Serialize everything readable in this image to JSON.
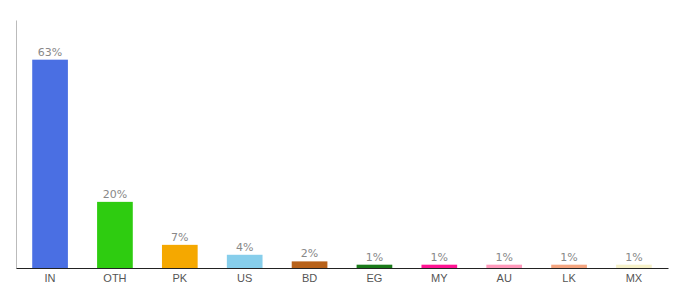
{
  "chart_data": {
    "type": "bar",
    "categories": [
      "IN",
      "OTH",
      "PK",
      "US",
      "BD",
      "EG",
      "MY",
      "AU",
      "LK",
      "MX"
    ],
    "values": [
      63,
      20,
      7,
      4,
      2,
      1,
      1,
      1,
      1,
      1
    ],
    "value_labels": [
      "63%",
      "20%",
      "7%",
      "4%",
      "2%",
      "1%",
      "1%",
      "1%",
      "1%",
      "1%"
    ],
    "data_labels": true,
    "colors": [
      "#4a6fe3",
      "#2ecc10",
      "#f5a800",
      "#87ceeb",
      "#b8621a",
      "#1a7a1a",
      "#ff1493",
      "#ff99bb",
      "#f4a580",
      "#f5f0c8"
    ],
    "ylim": [
      0,
      75
    ],
    "tick_labels": "x",
    "grid": false
  }
}
